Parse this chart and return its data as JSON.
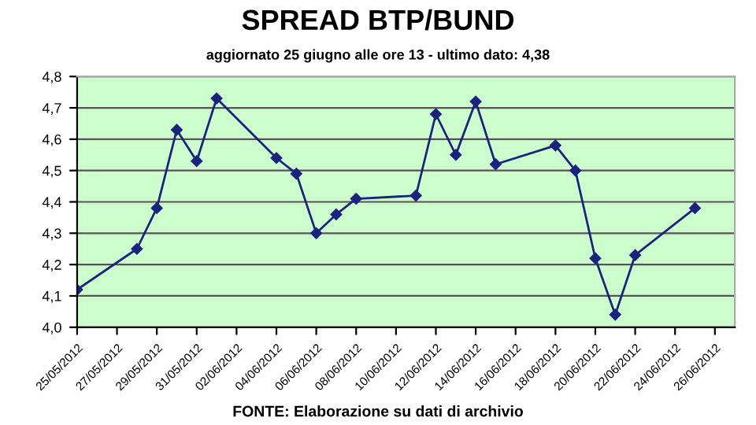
{
  "chart_data": {
    "type": "line",
    "title": "SPREAD BTP/BUND",
    "subtitle": "aggiornato 25 giugno alle ore 13 - ultimo dato: 4,38",
    "annotations": [
      "FONTE: Elaborazione su dati di archivio"
    ],
    "x": [
      "2012-05-25",
      "2012-05-28",
      "2012-05-29",
      "2012-05-30",
      "2012-05-31",
      "2012-06-01",
      "2012-06-04",
      "2012-06-05",
      "2012-06-06",
      "2012-06-07",
      "2012-06-08",
      "2012-06-11",
      "2012-06-12",
      "2012-06-13",
      "2012-06-14",
      "2012-06-15",
      "2012-06-18",
      "2012-06-19",
      "2012-06-20",
      "2012-06-21",
      "2012-06-22",
      "2012-06-25"
    ],
    "series": [
      {
        "color": "#1a237e",
        "values": [
          4.12,
          4.25,
          4.38,
          4.63,
          4.53,
          4.73,
          4.54,
          4.49,
          4.3,
          4.36,
          4.41,
          4.42,
          4.68,
          4.55,
          4.72,
          4.52,
          4.58,
          4.5,
          4.22,
          4.04,
          4.23,
          4.38
        ]
      }
    ],
    "xlim": [
      "2012-05-25",
      "2012-06-27"
    ],
    "xticks": [
      {
        "value": "2012-05-25",
        "label": "25/05/2012"
      },
      {
        "value": "2012-05-27",
        "label": "27/05/2012"
      },
      {
        "value": "2012-05-29",
        "label": "29/05/2012"
      },
      {
        "value": "2012-05-31",
        "label": "31/05/2012"
      },
      {
        "value": "2012-06-02",
        "label": "02/06/2012"
      },
      {
        "value": "2012-06-04",
        "label": "04/06/2012"
      },
      {
        "value": "2012-06-06",
        "label": "06/06/2012"
      },
      {
        "value": "2012-06-08",
        "label": "08/06/2012"
      },
      {
        "value": "2012-06-10",
        "label": "10/06/2012"
      },
      {
        "value": "2012-06-12",
        "label": "12/06/2012"
      },
      {
        "value": "2012-06-14",
        "label": "14/06/2012"
      },
      {
        "value": "2012-06-16",
        "label": "16/06/2012"
      },
      {
        "value": "2012-06-18",
        "label": "18/06/2012"
      },
      {
        "value": "2012-06-20",
        "label": "20/06/2012"
      },
      {
        "value": "2012-06-22",
        "label": "22/06/2012"
      },
      {
        "value": "2012-06-24",
        "label": "24/06/2012"
      },
      {
        "value": "2012-06-26",
        "label": "26/06/2012"
      }
    ],
    "ylim": [
      4.0,
      4.8
    ],
    "yticks": [
      {
        "value": 4.0,
        "label": "4,0"
      },
      {
        "value": 4.1,
        "label": "4,1"
      },
      {
        "value": 4.2,
        "label": "4,2"
      },
      {
        "value": 4.3,
        "label": "4,3"
      },
      {
        "value": 4.4,
        "label": "4,4"
      },
      {
        "value": 4.5,
        "label": "4,5"
      },
      {
        "value": 4.6,
        "label": "4,6"
      },
      {
        "value": 4.7,
        "label": "4,7"
      },
      {
        "value": 4.8,
        "label": "4,8"
      }
    ],
    "grid": "y",
    "marker": "diamond",
    "line_style": "solid"
  }
}
